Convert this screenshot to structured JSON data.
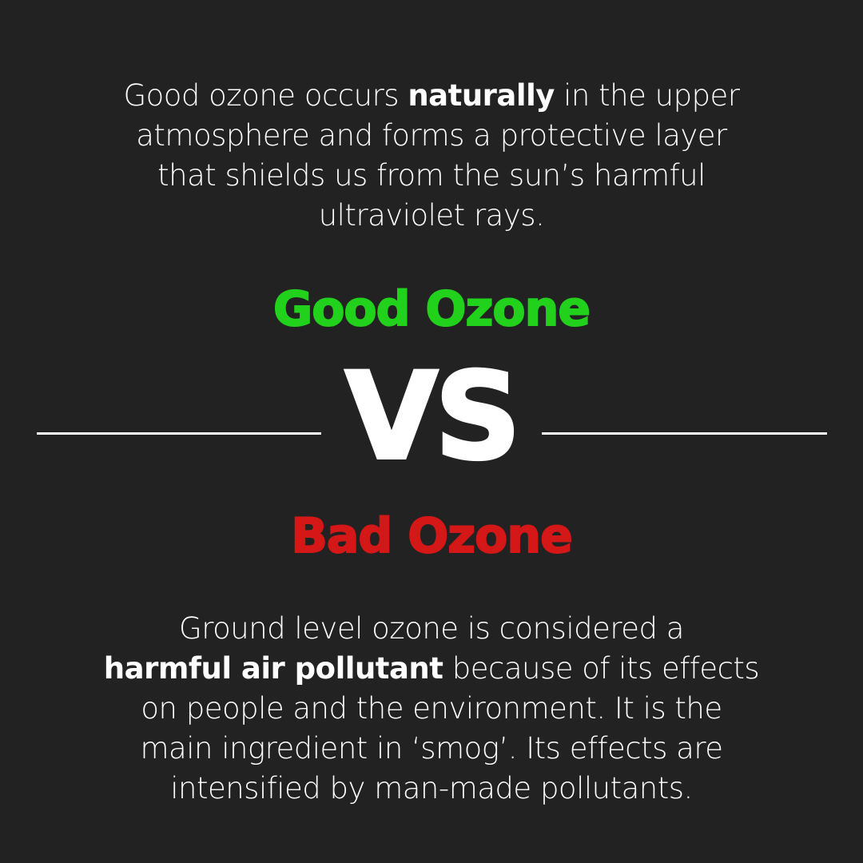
{
  "top_text": {
    "lines": [
      {
        "pre": "Good ozone occurs ",
        "bold": "naturally",
        "post": " in the upper"
      },
      {
        "pre": "atmosphere and forms a protective layer",
        "bold": "",
        "post": ""
      },
      {
        "pre": "that shields us from the sun’s harmful",
        "bold": "",
        "post": ""
      },
      {
        "pre": "ultraviolet rays.",
        "bold": "",
        "post": ""
      }
    ]
  },
  "good_heading": "Good Ozone",
  "vs_label": "VS",
  "bad_heading": "Bad Ozone",
  "bottom_text": {
    "lines": [
      {
        "pre": "Ground level ozone is considered a",
        "bold": "",
        "post": ""
      },
      {
        "pre": "",
        "bold": "harmful air pollutant",
        "post": " because of its effects"
      },
      {
        "pre": "on people and the environment. It is the",
        "bold": "",
        "post": ""
      },
      {
        "pre": "main ingredient in ‘smog’. Its effects are",
        "bold": "",
        "post": ""
      },
      {
        "pre": "intensified by man-made pollutants.",
        "bold": "",
        "post": ""
      }
    ]
  },
  "colors": {
    "background": "#222222",
    "good": "#22d11c",
    "bad": "#d41717",
    "text": "#ffffff"
  }
}
